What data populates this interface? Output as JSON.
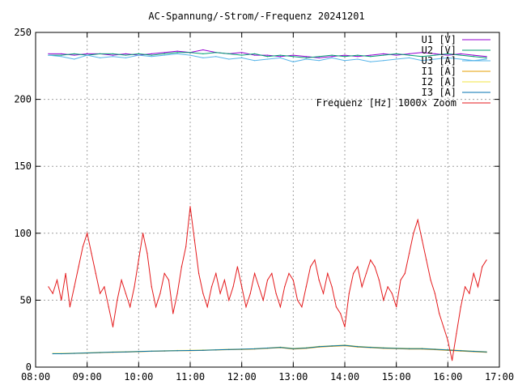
{
  "chart_data": {
    "type": "line",
    "title": "AC-Spannung/-Strom/-Frequenz 20241201",
    "xlabel": "",
    "ylabel": "",
    "xlim": [
      "08:00",
      "17:00"
    ],
    "ylim": [
      0,
      250
    ],
    "x_ticks": [
      "08:00",
      "09:00",
      "10:00",
      "11:00",
      "12:00",
      "13:00",
      "14:00",
      "15:00",
      "16:00",
      "17:00"
    ],
    "y_ticks": [
      "0",
      "50",
      "100",
      "150",
      "200",
      "250"
    ],
    "grid": true,
    "legend_position": "top-right",
    "series": [
      {
        "name": "U1 [V]",
        "color": "#9400d3",
        "x": [
          "08:15",
          "08:30",
          "08:45",
          "09:00",
          "09:15",
          "09:30",
          "09:45",
          "10:00",
          "10:15",
          "10:30",
          "10:45",
          "11:00",
          "11:15",
          "11:30",
          "11:45",
          "12:00",
          "12:15",
          "12:30",
          "12:45",
          "13:00",
          "13:15",
          "13:30",
          "13:45",
          "14:00",
          "14:15",
          "14:30",
          "14:45",
          "15:00",
          "15:15",
          "15:30",
          "15:45",
          "16:00",
          "16:15",
          "16:30",
          "16:45"
        ],
        "values": [
          234,
          234,
          233,
          234,
          234,
          233,
          234,
          233,
          234,
          235,
          236,
          235,
          237,
          235,
          234,
          235,
          233,
          233,
          232,
          233,
          232,
          231,
          232,
          233,
          232,
          233,
          234,
          233,
          234,
          235,
          234,
          233,
          234,
          233,
          232
        ]
      },
      {
        "name": "U2 [V]",
        "color": "#009e73",
        "x": [
          "08:15",
          "08:30",
          "08:45",
          "09:00",
          "09:15",
          "09:30",
          "09:45",
          "10:00",
          "10:15",
          "10:30",
          "10:45",
          "11:00",
          "11:15",
          "11:30",
          "11:45",
          "12:00",
          "12:15",
          "12:30",
          "12:45",
          "13:00",
          "13:15",
          "13:30",
          "13:45",
          "14:00",
          "14:15",
          "14:30",
          "14:45",
          "15:00",
          "15:15",
          "15:30",
          "15:45",
          "16:00",
          "16:15",
          "16:30",
          "16:45"
        ],
        "values": [
          233,
          233,
          234,
          233,
          234,
          234,
          233,
          234,
          233,
          234,
          235,
          235,
          234,
          235,
          234,
          233,
          234,
          232,
          233,
          232,
          231,
          232,
          233,
          232,
          233,
          232,
          233,
          234,
          233,
          232,
          233,
          234,
          233,
          232,
          231
        ]
      },
      {
        "name": "U3 [A]",
        "color": "#56b4e9",
        "x": [
          "08:15",
          "08:30",
          "08:45",
          "09:00",
          "09:15",
          "09:30",
          "09:45",
          "10:00",
          "10:15",
          "10:30",
          "10:45",
          "11:00",
          "11:15",
          "11:30",
          "11:45",
          "12:00",
          "12:15",
          "12:30",
          "12:45",
          "13:00",
          "13:15",
          "13:30",
          "13:45",
          "14:00",
          "14:15",
          "14:30",
          "14:45",
          "15:00",
          "15:15",
          "15:30",
          "15:45",
          "16:00",
          "16:15",
          "16:30",
          "16:45"
        ],
        "values": [
          233,
          232,
          230,
          233,
          231,
          232,
          231,
          233,
          232,
          233,
          234,
          233,
          231,
          232,
          230,
          231,
          229,
          230,
          231,
          228,
          230,
          229,
          231,
          229,
          230,
          228,
          229,
          230,
          231,
          229,
          230,
          231,
          230,
          229,
          230
        ]
      },
      {
        "name": "I1 [A]",
        "color": "#e69f00",
        "x": [
          "08:20",
          "08:30",
          "08:45",
          "09:00",
          "09:15",
          "09:30",
          "09:45",
          "10:00",
          "10:15",
          "10:30",
          "10:45",
          "11:00",
          "11:15",
          "11:30",
          "11:45",
          "12:00",
          "12:15",
          "12:30",
          "12:45",
          "13:00",
          "13:15",
          "13:30",
          "13:45",
          "14:00",
          "14:15",
          "14:30",
          "14:45",
          "15:00",
          "15:15",
          "15:30",
          "15:45",
          "16:00",
          "16:15",
          "16:30",
          "16:45"
        ],
        "values": [
          10,
          10,
          10.2,
          10.5,
          10.8,
          11,
          11.2,
          11.5,
          11.8,
          12,
          12.2,
          12.3,
          12.5,
          12.8,
          13,
          13.2,
          13.5,
          14,
          14.5,
          13.5,
          14,
          15,
          15.5,
          16,
          15,
          14.5,
          14,
          13.8,
          13.5,
          13.5,
          13,
          12.5,
          12,
          11.5,
          11
        ]
      },
      {
        "name": "I2 [A]",
        "color": "#f0e442",
        "x": [
          "08:20",
          "08:30",
          "08:45",
          "09:00",
          "09:15",
          "09:30",
          "09:45",
          "10:00",
          "10:15",
          "10:30",
          "10:45",
          "11:00",
          "11:15",
          "11:30",
          "11:45",
          "12:00",
          "12:15",
          "12:30",
          "12:45",
          "13:00",
          "13:15",
          "13:30",
          "13:45",
          "14:00",
          "14:15",
          "14:30",
          "14:45",
          "15:00",
          "15:15",
          "15:30",
          "15:45",
          "16:00",
          "16:15",
          "16:30",
          "16:45"
        ],
        "values": [
          10.3,
          10.3,
          10.5,
          10.8,
          11,
          11.3,
          11.5,
          11.8,
          12,
          12.2,
          12.5,
          12.6,
          12.8,
          13,
          13.3,
          13.5,
          13.8,
          14.3,
          15,
          14,
          14.5,
          15.5,
          16,
          16.5,
          15.5,
          15,
          14.5,
          14.2,
          14,
          14,
          13.5,
          13,
          12.5,
          12,
          11.5
        ]
      },
      {
        "name": "I3 [A]",
        "color": "#0072b2",
        "x": [
          "08:20",
          "08:30",
          "08:45",
          "09:00",
          "09:15",
          "09:30",
          "09:45",
          "10:00",
          "10:15",
          "10:30",
          "10:45",
          "11:00",
          "11:15",
          "11:30",
          "11:45",
          "12:00",
          "12:15",
          "12:30",
          "12:45",
          "13:00",
          "13:15",
          "13:30",
          "13:45",
          "14:00",
          "14:15",
          "14:30",
          "14:45",
          "15:00",
          "15:15",
          "15:30",
          "15:45",
          "16:00",
          "16:15",
          "16:30",
          "16:45"
        ],
        "values": [
          10,
          10,
          10.3,
          10.6,
          10.9,
          11.2,
          11.4,
          11.7,
          11.9,
          12.1,
          12.3,
          12.4,
          12.6,
          12.9,
          13.2,
          13.4,
          13.7,
          14.2,
          14.8,
          13.8,
          14.3,
          15.3,
          15.8,
          16.3,
          15.3,
          14.8,
          14.3,
          14,
          13.8,
          13.8,
          13.3,
          12.8,
          12.3,
          11.8,
          11.3
        ]
      },
      {
        "name": "Frequenz [Hz] 1000x Zoom",
        "color": "#e41a1c",
        "x": [
          "08:15",
          "08:20",
          "08:25",
          "08:30",
          "08:35",
          "08:40",
          "08:45",
          "08:50",
          "08:55",
          "09:00",
          "09:05",
          "09:10",
          "09:15",
          "09:20",
          "09:25",
          "09:30",
          "09:35",
          "09:40",
          "09:45",
          "09:50",
          "09:55",
          "10:00",
          "10:05",
          "10:10",
          "10:15",
          "10:20",
          "10:25",
          "10:30",
          "10:35",
          "10:40",
          "10:45",
          "10:50",
          "10:55",
          "11:00",
          "11:05",
          "11:10",
          "11:15",
          "11:20",
          "11:25",
          "11:30",
          "11:35",
          "11:40",
          "11:45",
          "11:50",
          "11:55",
          "12:00",
          "12:05",
          "12:10",
          "12:15",
          "12:20",
          "12:25",
          "12:30",
          "12:35",
          "12:40",
          "12:45",
          "12:50",
          "12:55",
          "13:00",
          "13:05",
          "13:10",
          "13:15",
          "13:20",
          "13:25",
          "13:30",
          "13:35",
          "13:40",
          "13:45",
          "13:50",
          "13:55",
          "14:00",
          "14:05",
          "14:10",
          "14:15",
          "14:20",
          "14:25",
          "14:30",
          "14:35",
          "14:40",
          "14:45",
          "14:50",
          "14:55",
          "15:00",
          "15:05",
          "15:10",
          "15:15",
          "15:20",
          "15:25",
          "15:30",
          "15:35",
          "15:40",
          "15:45",
          "15:50",
          "15:55",
          "16:00",
          "16:05",
          "16:10",
          "16:15",
          "16:20",
          "16:25",
          "16:30",
          "16:35",
          "16:40",
          "16:45"
        ],
        "values": [
          60,
          55,
          65,
          50,
          70,
          45,
          60,
          75,
          90,
          100,
          85,
          70,
          55,
          60,
          45,
          30,
          50,
          65,
          55,
          45,
          60,
          80,
          100,
          85,
          60,
          45,
          55,
          70,
          65,
          40,
          55,
          75,
          90,
          120,
          95,
          70,
          55,
          45,
          60,
          70,
          55,
          65,
          50,
          60,
          75,
          60,
          45,
          55,
          70,
          60,
          50,
          65,
          70,
          55,
          45,
          60,
          70,
          65,
          50,
          45,
          60,
          75,
          80,
          65,
          55,
          70,
          60,
          45,
          40,
          30,
          55,
          70,
          75,
          60,
          70,
          80,
          75,
          65,
          50,
          60,
          55,
          45,
          65,
          70,
          85,
          100,
          110,
          95,
          80,
          65,
          55,
          40,
          30,
          20,
          5,
          25,
          45,
          60,
          55,
          70,
          60,
          75,
          80
        ]
      }
    ]
  }
}
